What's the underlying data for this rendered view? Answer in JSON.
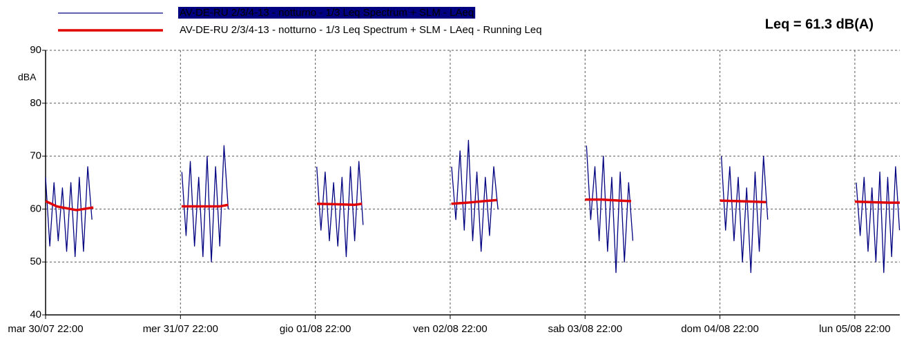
{
  "chart_data": {
    "type": "line",
    "annotation": "Leq = 61.3 dB(A)",
    "y_label": "dBA",
    "xlim": [
      0,
      152
    ],
    "ylim": [
      40,
      90
    ],
    "yticks": [
      40,
      50,
      60,
      70,
      80,
      90
    ],
    "xticks": [
      {
        "value": 0,
        "label": "mar 30/07 22:00"
      },
      {
        "value": 24,
        "label": "mer 31/07 22:00"
      },
      {
        "value": 48,
        "label": "gio 01/08 22:00"
      },
      {
        "value": 72,
        "label": "ven 02/08 22:00"
      },
      {
        "value": 96,
        "label": "sab 03/08 22:00"
      },
      {
        "value": 120,
        "label": "dom 04/08 22:00"
      },
      {
        "value": 144,
        "label": "lun 05/08 22:00"
      }
    ],
    "grid": true,
    "series": [
      {
        "name": "AV-DE-RU 2/3/4-13 - notturno - 1/3 Leq Spectrum + SLM - LAeq",
        "color": "#000080",
        "width": 1.3,
        "x": [
          0,
          0.75,
          1.5,
          2.25,
          3,
          3.75,
          4.5,
          5.25,
          6,
          6.75,
          7.5,
          8.25,
          null,
          24.25,
          25,
          25.75,
          26.5,
          27.25,
          28,
          28.75,
          29.5,
          30.25,
          31,
          31.75,
          32.5,
          null,
          48.25,
          49,
          49.75,
          50.5,
          51.25,
          52,
          52.75,
          53.5,
          54.25,
          55,
          55.75,
          56.5,
          null,
          72.25,
          73,
          73.75,
          74.5,
          75.25,
          76,
          76.75,
          77.5,
          78.25,
          79,
          79.75,
          80.5,
          null,
          96.25,
          97,
          97.75,
          98.5,
          99.25,
          100,
          100.75,
          101.5,
          102.25,
          103,
          103.75,
          104.5,
          null,
          120.25,
          121,
          121.75,
          122.5,
          123.25,
          124,
          124.75,
          125.5,
          126.25,
          127,
          127.75,
          128.5,
          null,
          144.25,
          144.95,
          145.65,
          146.35,
          147.05,
          147.75,
          148.45,
          149.15,
          149.85,
          150.55,
          151.25,
          151.95
        ],
        "values": [
          66,
          53,
          65,
          54,
          64,
          52,
          65,
          51,
          66,
          52,
          68,
          58,
          null,
          67,
          55,
          69,
          53,
          66,
          51,
          70,
          50,
          68,
          53,
          72,
          60,
          null,
          68,
          56,
          67,
          54,
          65,
          53,
          66,
          51,
          68,
          54,
          69,
          57,
          null,
          68,
          58,
          71,
          56,
          73,
          54,
          67,
          52,
          66,
          55,
          68,
          60,
          null,
          72,
          58,
          68,
          54,
          70,
          52,
          66,
          48,
          67,
          50,
          65,
          54,
          null,
          70,
          56,
          68,
          54,
          66,
          50,
          64,
          48,
          67,
          52,
          70,
          58,
          null,
          65,
          55,
          66,
          52,
          64,
          50,
          67,
          48,
          66,
          51,
          68,
          56
        ]
      },
      {
        "name": "AV-DE-RU 2/3/4-13 - notturno - 1/3 Leq Spectrum + SLM - LAeq - Running Leq",
        "color": "#e00000",
        "width": 3.5,
        "x": [
          0,
          2,
          5.5,
          8.5,
          null,
          24.2,
          28,
          31,
          32.5,
          null,
          48.3,
          52,
          55,
          56.3,
          null,
          72.2,
          75,
          78,
          80.3,
          null,
          96,
          99,
          102,
          104.2,
          null,
          120,
          123,
          126,
          128.2,
          null,
          144,
          147,
          150,
          152
        ],
        "values": [
          61.5,
          60.5,
          59.8,
          60.3,
          null,
          60.5,
          60.5,
          60.5,
          60.8,
          null,
          61,
          60.9,
          60.8,
          61,
          null,
          61,
          61.2,
          61.5,
          61.7,
          null,
          61.8,
          61.8,
          61.6,
          61.5,
          null,
          61.6,
          61.5,
          61.4,
          61.3,
          null,
          61.4,
          61.3,
          61.2,
          61.2
        ]
      }
    ]
  }
}
